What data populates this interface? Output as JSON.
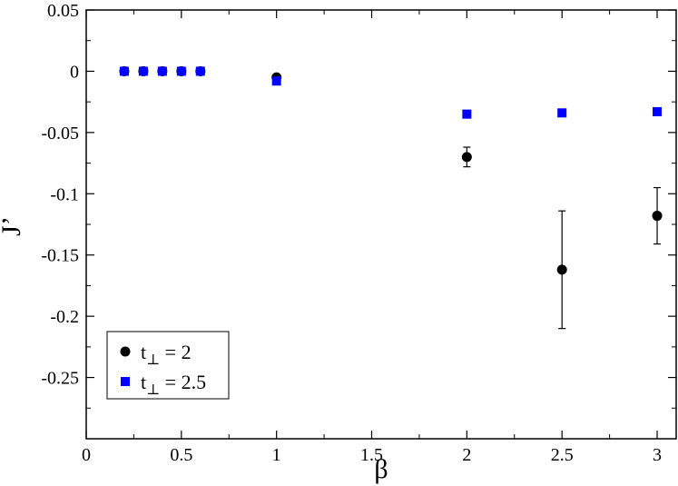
{
  "chart_data": {
    "type": "scatter",
    "title": "",
    "xlabel": "β",
    "ylabel": "J’",
    "xlim": [
      0,
      3.1
    ],
    "ylim": [
      -0.3,
      0.05
    ],
    "grid": false,
    "legend_position": "bottom-left",
    "x_ticks": [
      {
        "value": 0,
        "label": "0"
      },
      {
        "value": 0.5,
        "label": "0.5"
      },
      {
        "value": 1,
        "label": "1"
      },
      {
        "value": 1.5,
        "label": "1.5"
      },
      {
        "value": 2,
        "label": "2"
      },
      {
        "value": 2.5,
        "label": "2.5"
      },
      {
        "value": 3,
        "label": "3"
      }
    ],
    "y_ticks": [
      {
        "value": 0.05,
        "label": "0.05"
      },
      {
        "value": 0,
        "label": "0"
      },
      {
        "value": -0.05,
        "label": "-0.05"
      },
      {
        "value": -0.1,
        "label": "-0.1"
      },
      {
        "value": -0.15,
        "label": "-0.15"
      },
      {
        "value": -0.2,
        "label": "-0.2"
      },
      {
        "value": -0.25,
        "label": "-0.25"
      }
    ],
    "series": [
      {
        "label_main": "t",
        "label_sub": "⊥",
        "label_value": " = 2",
        "marker": "circle",
        "color": "#000000",
        "points": [
          {
            "x": 0.2,
            "y": 0.0,
            "err": 0
          },
          {
            "x": 0.3,
            "y": 0.0,
            "err": 0
          },
          {
            "x": 0.4,
            "y": 0.0,
            "err": 0
          },
          {
            "x": 0.5,
            "y": 0.0,
            "err": 0
          },
          {
            "x": 0.6,
            "y": 0.0,
            "err": 0
          },
          {
            "x": 1.0,
            "y": -0.005,
            "err": 0
          },
          {
            "x": 2.0,
            "y": -0.07,
            "err": 0.008
          },
          {
            "x": 2.5,
            "y": -0.162,
            "err": 0.048
          },
          {
            "x": 3.0,
            "y": -0.118,
            "err": 0.023
          }
        ]
      },
      {
        "label_main": "t",
        "label_sub": "⊥",
        "label_value": " = 2.5",
        "marker": "square",
        "color": "#0000ff",
        "points": [
          {
            "x": 0.2,
            "y": 0.0,
            "err": 0
          },
          {
            "x": 0.3,
            "y": 0.0,
            "err": 0
          },
          {
            "x": 0.4,
            "y": 0.0,
            "err": 0
          },
          {
            "x": 0.5,
            "y": 0.0,
            "err": 0
          },
          {
            "x": 0.6,
            "y": 0.0,
            "err": 0
          },
          {
            "x": 1.0,
            "y": -0.008,
            "err": 0
          },
          {
            "x": 2.0,
            "y": -0.035,
            "err": 0
          },
          {
            "x": 2.5,
            "y": -0.034,
            "err": 0
          },
          {
            "x": 3.0,
            "y": -0.033,
            "err": 0
          }
        ]
      }
    ]
  }
}
